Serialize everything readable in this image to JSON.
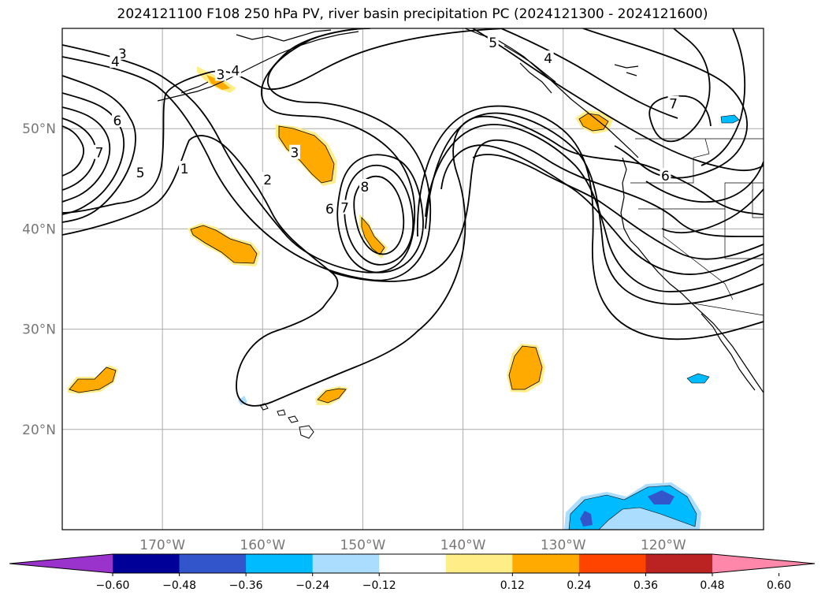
{
  "title": "2024121100 F108 250 hPa PV, river basin precipitation PC (2024121300 - 2024121600)",
  "map": {
    "lon_range": [
      -180,
      -110
    ],
    "lat_range": [
      10,
      60
    ],
    "lat_ticks": [
      {
        "value": 20,
        "label": "20°N"
      },
      {
        "value": 30,
        "label": "30°N"
      },
      {
        "value": 40,
        "label": "40°N"
      },
      {
        "value": 50,
        "label": "50°N"
      }
    ],
    "lon_ticks": [
      {
        "value": -170,
        "label": "170°W"
      },
      {
        "value": -160,
        "label": "160°W"
      },
      {
        "value": -150,
        "label": "150°W"
      },
      {
        "value": -140,
        "label": "140°W"
      },
      {
        "value": -130,
        "label": "130°W"
      },
      {
        "value": -120,
        "label": "120°W"
      }
    ],
    "grid": true,
    "contour_labels": [
      {
        "text": "3",
        "lon": -174,
        "lat": 57.5
      },
      {
        "text": "4",
        "lon": -174.7,
        "lat": 56.7
      },
      {
        "text": "6",
        "lon": -174.5,
        "lat": 50.8
      },
      {
        "text": "7",
        "lon": -176.3,
        "lat": 47.6
      },
      {
        "text": "5",
        "lon": -172.2,
        "lat": 45.6
      },
      {
        "text": "1",
        "lon": -167.8,
        "lat": 46.0
      },
      {
        "text": "2",
        "lon": -159.5,
        "lat": 44.9
      },
      {
        "text": "3",
        "lon": -156.8,
        "lat": 47.6
      },
      {
        "text": "3",
        "lon": -164.2,
        "lat": 55.4
      },
      {
        "text": "4",
        "lon": -162.7,
        "lat": 55.8
      },
      {
        "text": "6",
        "lon": -153.3,
        "lat": 42.0
      },
      {
        "text": "7",
        "lon": -151.8,
        "lat": 42.1
      },
      {
        "text": "8",
        "lon": -149.8,
        "lat": 44.2
      },
      {
        "text": "4",
        "lon": -131.5,
        "lat": 57.0
      },
      {
        "text": "5",
        "lon": -137,
        "lat": 58.6
      },
      {
        "text": "7",
        "lon": -119,
        "lat": 52.5
      },
      {
        "text": "6",
        "lon": -119.8,
        "lat": 45.3
      }
    ]
  },
  "colorbar": {
    "colors": [
      "#9933cc",
      "#000099",
      "#3355cc",
      "#00bbff",
      "#aaddff",
      "#ffffff",
      "#ffee88",
      "#ffaa00",
      "#ff4400",
      "#bb2222",
      "#ff88aa"
    ],
    "tick_labels": [
      "−0.60",
      "−0.48",
      "−0.36",
      "−0.24",
      "−0.12",
      "0.12",
      "0.24",
      "0.36",
      "0.48",
      "0.60"
    ]
  }
}
